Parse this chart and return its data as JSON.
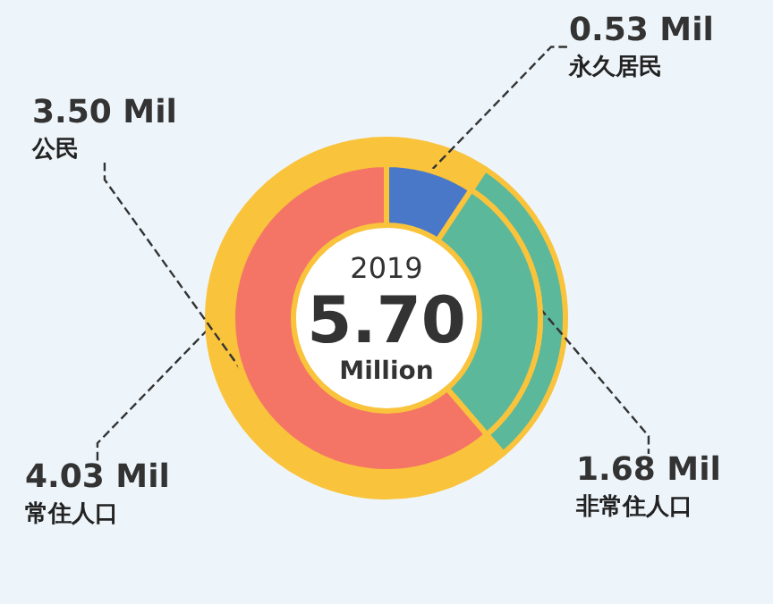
{
  "chart_data": [
    {
      "type": "donut",
      "annotations": [
        "2019",
        "5.70",
        "Million"
      ],
      "categories": [
        "永久居民",
        "非常住人口",
        "公民"
      ],
      "values": [
        0.53,
        1.68,
        3.5
      ],
      "colors": [
        "#4a78c8",
        "#5bb89a",
        "#f47565"
      ],
      "value_labels": [
        "0.53 Mil",
        "1.68 Mil",
        "3.50 Mil"
      ]
    },
    {
      "type": "donut",
      "categories": [
        null,
        "常住人口"
      ],
      "values": [
        1.68,
        4.03
      ],
      "colors": [
        "#5bb89a",
        "#f9c33c"
      ],
      "value_labels": [
        null,
        "4.03 Mil"
      ]
    }
  ]
}
